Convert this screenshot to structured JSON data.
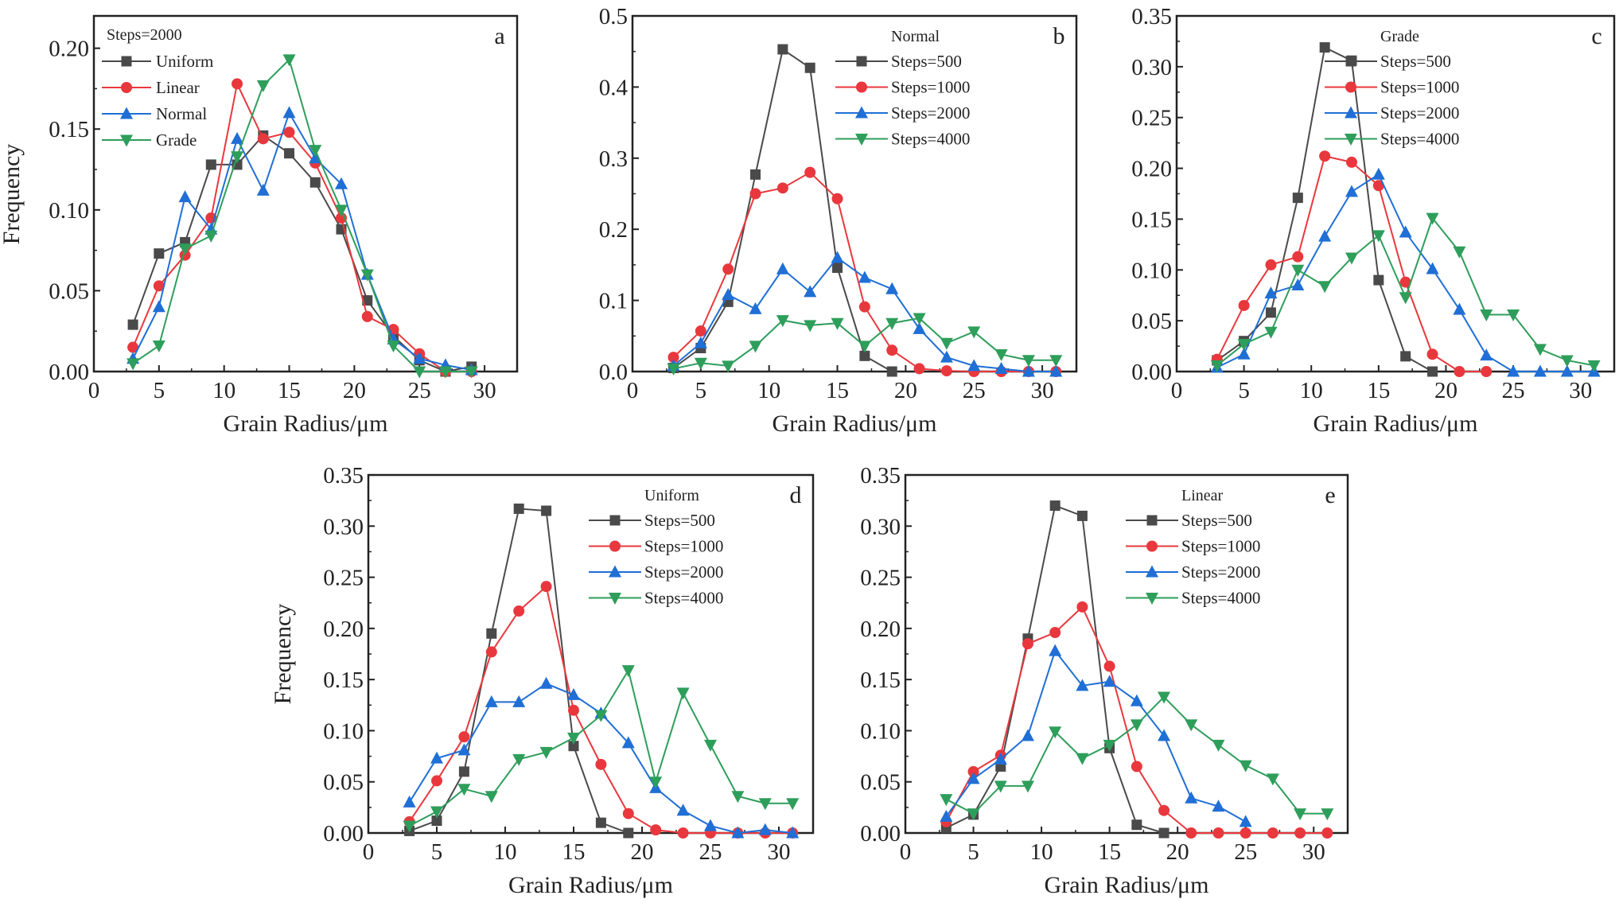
{
  "colors": {
    "s0": "#4a4a4a",
    "s1": "#e8383d",
    "s2": "#1f6fd6",
    "s3": "#2e9e5b"
  },
  "chart_data": [
    {
      "type": "line",
      "panel": "a",
      "legend_title": "Steps=2000",
      "xlabel": "Grain Radius/μm",
      "ylabel": "Frequency",
      "xlim": [
        0,
        32.5
      ],
      "ylim": [
        0,
        0.22
      ],
      "xticks": [
        0,
        5,
        10,
        15,
        20,
        25,
        30
      ],
      "yticks": [
        0.0,
        0.05,
        0.1,
        0.15,
        0.2
      ],
      "ytick_labels": [
        "0.00",
        "0.05",
        "0.10",
        "0.15",
        "0.20"
      ],
      "legend_position": "top-left",
      "x": [
        3,
        5,
        7,
        9,
        11,
        13,
        15,
        17,
        19,
        21,
        23,
        25,
        27,
        29
      ],
      "series": [
        {
          "name": "Uniform",
          "marker": "square",
          "values": [
            0.029,
            0.073,
            0.08,
            0.128,
            0.128,
            0.146,
            0.135,
            0.117,
            0.088,
            0.044,
            0.022,
            0.007,
            0.0,
            0.003
          ]
        },
        {
          "name": "Linear",
          "marker": "circle",
          "values": [
            0.015,
            0.053,
            0.072,
            0.095,
            0.178,
            0.144,
            0.148,
            0.129,
            0.095,
            0.034,
            0.026,
            0.011,
            0.0,
            0.0
          ]
        },
        {
          "name": "Normal",
          "marker": "triangle-up",
          "values": [
            0.008,
            0.04,
            0.108,
            0.088,
            0.144,
            0.112,
            0.16,
            0.132,
            0.116,
            0.06,
            0.02,
            0.008,
            0.004,
            0.001
          ]
        },
        {
          "name": "Grade",
          "marker": "triangle-down",
          "values": [
            0.005,
            0.016,
            0.076,
            0.084,
            0.133,
            0.177,
            0.193,
            0.137,
            0.1,
            0.06,
            0.016,
            0.0,
            0.0,
            0.0
          ]
        }
      ]
    },
    {
      "type": "line",
      "panel": "b",
      "legend_title": "Normal",
      "xlabel": "Grain Radius/μm",
      "ylabel": "",
      "xlim": [
        0,
        32.5
      ],
      "ylim": [
        0,
        0.5
      ],
      "xticks": [
        0,
        5,
        10,
        15,
        20,
        25,
        30
      ],
      "yticks": [
        0.0,
        0.1,
        0.2,
        0.3,
        0.4,
        0.5
      ],
      "ytick_labels": [
        "0.0",
        "0.1",
        "0.2",
        "0.3",
        "0.4",
        "0.5"
      ],
      "legend_position": "top-right",
      "x": [
        3,
        5,
        7,
        9,
        11,
        13,
        15,
        17,
        19,
        21,
        23,
        25,
        27,
        29,
        31
      ],
      "series": [
        {
          "name": "Steps=500",
          "marker": "square",
          "values": [
            0.005,
            0.033,
            0.098,
            0.277,
            0.453,
            0.427,
            0.146,
            0.022,
            0.0,
            null,
            null,
            null,
            null,
            null,
            null
          ]
        },
        {
          "name": "Steps=1000",
          "marker": "circle",
          "values": [
            0.02,
            0.057,
            0.144,
            0.25,
            0.258,
            0.28,
            0.243,
            0.091,
            0.03,
            0.004,
            0.001,
            0.0,
            0.0,
            0.0,
            0.0
          ]
        },
        {
          "name": "Steps=2000",
          "marker": "triangle-up",
          "values": [
            0.008,
            0.04,
            0.108,
            0.088,
            0.144,
            0.112,
            0.16,
            0.132,
            0.116,
            0.06,
            0.02,
            0.008,
            0.004,
            0.0,
            0.0
          ]
        },
        {
          "name": "Steps=4000",
          "marker": "triangle-down",
          "values": [
            0.004,
            0.012,
            0.008,
            0.036,
            0.072,
            0.065,
            0.068,
            0.036,
            0.068,
            0.075,
            0.04,
            0.056,
            0.024,
            0.016,
            0.016
          ]
        }
      ]
    },
    {
      "type": "line",
      "panel": "c",
      "legend_title": "Grade",
      "xlabel": "Grain Radius/μm",
      "ylabel": "",
      "xlim": [
        0,
        32.5
      ],
      "ylim": [
        0,
        0.35
      ],
      "xticks": [
        0,
        5,
        10,
        15,
        20,
        25,
        30
      ],
      "yticks": [
        0.0,
        0.05,
        0.1,
        0.15,
        0.2,
        0.25,
        0.3,
        0.35
      ],
      "ytick_labels": [
        "0.00",
        "0.05",
        "0.10",
        "0.15",
        "0.20",
        "0.25",
        "0.30",
        "0.35"
      ],
      "legend_position": "top-right",
      "x": [
        3,
        5,
        7,
        9,
        11,
        13,
        15,
        17,
        19,
        21,
        23,
        25,
        27,
        29,
        31
      ],
      "series": [
        {
          "name": "Steps=500",
          "marker": "square",
          "values": [
            0.011,
            0.03,
            0.058,
            0.171,
            0.319,
            0.306,
            0.09,
            0.015,
            0.0,
            null,
            null,
            null,
            null,
            null,
            null
          ]
        },
        {
          "name": "Steps=1000",
          "marker": "circle",
          "values": [
            0.012,
            0.065,
            0.105,
            0.113,
            0.212,
            0.206,
            0.183,
            0.088,
            0.017,
            0.0,
            0.0,
            null,
            null,
            null,
            null
          ]
        },
        {
          "name": "Steps=2000",
          "marker": "triangle-up",
          "values": [
            0.004,
            0.017,
            0.077,
            0.085,
            0.133,
            0.177,
            0.194,
            0.137,
            0.101,
            0.061,
            0.016,
            0.0,
            0.0,
            0.0,
            0.0
          ]
        },
        {
          "name": "Steps=4000",
          "marker": "triangle-down",
          "values": [
            0.006,
            0.027,
            0.039,
            0.1,
            0.084,
            0.112,
            0.134,
            0.073,
            0.151,
            0.118,
            0.056,
            0.056,
            0.022,
            0.011,
            0.006
          ]
        }
      ]
    },
    {
      "type": "line",
      "panel": "d",
      "legend_title": "Uniform",
      "xlabel": "Grain Radius/μm",
      "ylabel": "Frequency",
      "xlim": [
        0,
        32.5
      ],
      "ylim": [
        0,
        0.35
      ],
      "xticks": [
        0,
        5,
        10,
        15,
        20,
        25,
        30
      ],
      "yticks": [
        0.0,
        0.05,
        0.1,
        0.15,
        0.2,
        0.25,
        0.3,
        0.35
      ],
      "ytick_labels": [
        "0.00",
        "0.05",
        "0.10",
        "0.15",
        "0.20",
        "0.25",
        "0.30",
        "0.35"
      ],
      "legend_position": "top-right",
      "x": [
        3,
        5,
        7,
        9,
        11,
        13,
        15,
        17,
        19,
        21,
        23,
        25,
        27,
        29,
        31
      ],
      "series": [
        {
          "name": "Steps=500",
          "marker": "square",
          "values": [
            0.002,
            0.012,
            0.06,
            0.195,
            0.317,
            0.315,
            0.085,
            0.01,
            0.0,
            null,
            null,
            null,
            null,
            null,
            null
          ]
        },
        {
          "name": "Steps=1000",
          "marker": "circle",
          "values": [
            0.011,
            0.051,
            0.094,
            0.177,
            0.217,
            0.241,
            0.12,
            0.067,
            0.019,
            0.003,
            0.0,
            0.0,
            0.0,
            0.0,
            0.0
          ]
        },
        {
          "name": "Steps=2000",
          "marker": "triangle-up",
          "values": [
            0.03,
            0.073,
            0.081,
            0.128,
            0.128,
            0.146,
            0.135,
            0.117,
            0.088,
            0.044,
            0.022,
            0.007,
            0.0,
            0.003,
            0.0
          ]
        },
        {
          "name": "Steps=4000",
          "marker": "triangle-down",
          "values": [
            0.007,
            0.021,
            0.043,
            0.036,
            0.072,
            0.079,
            0.093,
            0.115,
            0.159,
            0.05,
            0.137,
            0.086,
            0.036,
            0.029,
            0.029
          ]
        }
      ]
    },
    {
      "type": "line",
      "panel": "e",
      "legend_title": "Linear",
      "xlabel": "Grain Radius/μm",
      "ylabel": "",
      "xlim": [
        0,
        32.5
      ],
      "ylim": [
        0,
        0.35
      ],
      "xticks": [
        0,
        5,
        10,
        15,
        20,
        25,
        30
      ],
      "yticks": [
        0.0,
        0.05,
        0.1,
        0.15,
        0.2,
        0.25,
        0.3,
        0.35
      ],
      "ytick_labels": [
        "0.00",
        "0.05",
        "0.10",
        "0.15",
        "0.20",
        "0.25",
        "0.30",
        "0.35"
      ],
      "legend_position": "top-right",
      "x": [
        3,
        5,
        7,
        9,
        11,
        13,
        15,
        17,
        19,
        21,
        23,
        25,
        27,
        29,
        31
      ],
      "series": [
        {
          "name": "Steps=500",
          "marker": "square",
          "values": [
            0.005,
            0.018,
            0.065,
            0.19,
            0.32,
            0.31,
            0.083,
            0.008,
            0.0,
            null,
            null,
            null,
            null,
            null,
            null
          ]
        },
        {
          "name": "Steps=1000",
          "marker": "circle",
          "values": [
            0.011,
            0.06,
            0.076,
            0.185,
            0.196,
            0.221,
            0.163,
            0.065,
            0.022,
            0.0,
            0.0,
            0.0,
            0.0,
            0.0,
            0.0
          ]
        },
        {
          "name": "Steps=2000",
          "marker": "triangle-up",
          "values": [
            0.016,
            0.053,
            0.072,
            0.095,
            0.178,
            0.144,
            0.148,
            0.129,
            0.095,
            0.034,
            0.026,
            0.011,
            null,
            null,
            null
          ]
        },
        {
          "name": "Steps=4000",
          "marker": "triangle-down",
          "values": [
            0.033,
            0.019,
            0.046,
            0.046,
            0.099,
            0.073,
            0.086,
            0.106,
            0.133,
            0.106,
            0.086,
            0.066,
            0.053,
            0.019,
            0.019
          ]
        }
      ]
    }
  ]
}
